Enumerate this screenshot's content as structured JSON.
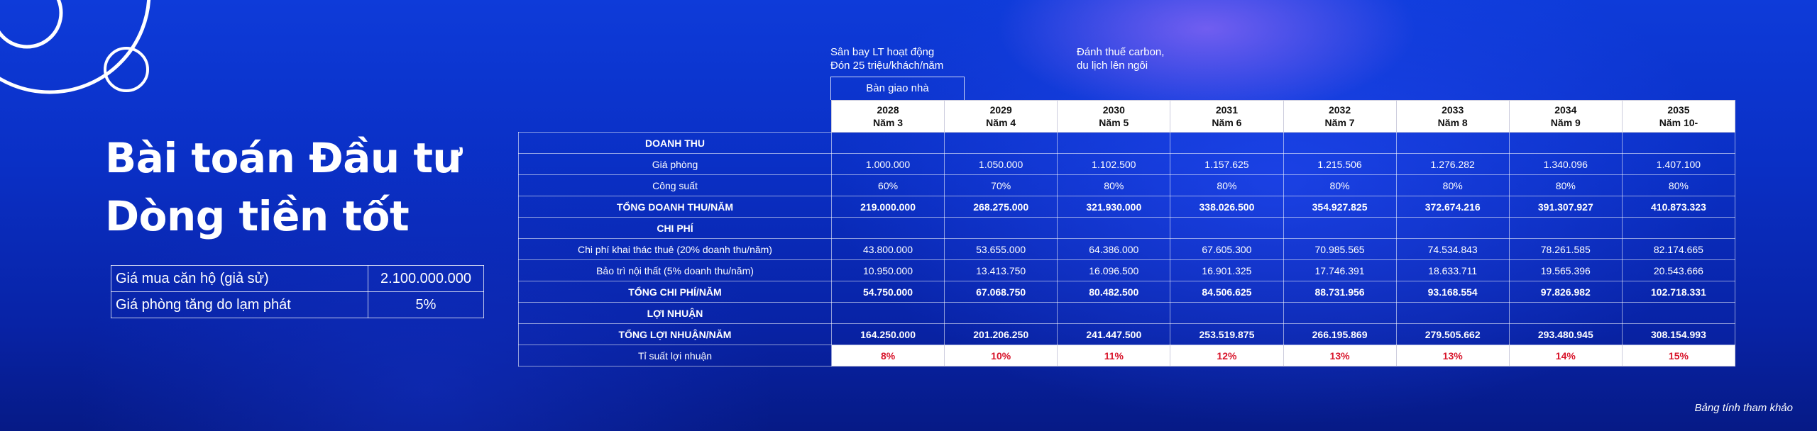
{
  "title_lines": [
    "Bài toán Đầu tư",
    "Dòng tiền tốt"
  ],
  "assumptions": [
    {
      "label": "Giá mua căn hộ (giả sử)",
      "value": "2.100.000.000"
    },
    {
      "label": "Giá phòng tăng do lạm phát",
      "value": "5%"
    }
  ],
  "notes": {
    "airport_l1": "Sân bay LT hoạt động",
    "airport_l2": "Đón 25 triệu/khách/năm",
    "carbon_l1": "Đánh thuế carbon,",
    "carbon_l2": "du lịch lên ngôi",
    "handover": "Bàn giao nhà"
  },
  "years": [
    {
      "year": "2028",
      "label": "Năm 3"
    },
    {
      "year": "2029",
      "label": "Năm 4"
    },
    {
      "year": "2030",
      "label": "Năm 5"
    },
    {
      "year": "2031",
      "label": "Năm 6"
    },
    {
      "year": "2032",
      "label": "Năm 7"
    },
    {
      "year": "2033",
      "label": "Năm 8"
    },
    {
      "year": "2034",
      "label": "Năm 9"
    },
    {
      "year": "2035",
      "label": "Năm 10-"
    }
  ],
  "rows": [
    {
      "label": "DOANH THU",
      "kind": "section",
      "values": [
        "",
        "",
        "",
        "",
        "",
        "",
        "",
        ""
      ]
    },
    {
      "label": "Giá phòng",
      "kind": "normal",
      "values": [
        "1.000.000",
        "1.050.000",
        "1.102.500",
        "1.157.625",
        "1.215.506",
        "1.276.282",
        "1.340.096",
        "1.407.100"
      ]
    },
    {
      "label": "Công suất",
      "kind": "normal",
      "values": [
        "60%",
        "70%",
        "80%",
        "80%",
        "80%",
        "80%",
        "80%",
        "80%"
      ]
    },
    {
      "label": "TỔNG DOANH THU/NĂM",
      "kind": "bold",
      "values": [
        "219.000.000",
        "268.275.000",
        "321.930.000",
        "338.026.500",
        "354.927.825",
        "372.674.216",
        "391.307.927",
        "410.873.323"
      ]
    },
    {
      "label": "CHI PHÍ",
      "kind": "section",
      "values": [
        "",
        "",
        "",
        "",
        "",
        "",
        "",
        ""
      ]
    },
    {
      "label": "Chi phí khai thác thuê (20% doanh thu/năm)",
      "kind": "normal",
      "values": [
        "43.800.000",
        "53.655.000",
        "64.386.000",
        "67.605.300",
        "70.985.565",
        "74.534.843",
        "78.261.585",
        "82.174.665"
      ]
    },
    {
      "label": "Bảo trì nội thất (5% doanh thu/năm)",
      "kind": "normal",
      "values": [
        "10.950.000",
        "13.413.750",
        "16.096.500",
        "16.901.325",
        "17.746.391",
        "18.633.711",
        "19.565.396",
        "20.543.666"
      ]
    },
    {
      "label": "TỔNG CHI PHÍ/NĂM",
      "kind": "bold",
      "values": [
        "54.750.000",
        "67.068.750",
        "80.482.500",
        "84.506.625",
        "88.731.956",
        "93.168.554",
        "97.826.982",
        "102.718.331"
      ]
    },
    {
      "label": "LỢI NHUẬN",
      "kind": "section",
      "values": [
        "",
        "",
        "",
        "",
        "",
        "",
        "",
        ""
      ]
    },
    {
      "label": "TỔNG LỢI NHUẬN/NĂM",
      "kind": "bold",
      "values": [
        "164.250.000",
        "201.206.250",
        "241.447.500",
        "253.519.875",
        "266.195.869",
        "279.505.662",
        "293.480.945",
        "308.154.993"
      ]
    },
    {
      "label": "Tỉ suất lợi nhuận",
      "kind": "rate",
      "values": [
        "8%",
        "10%",
        "11%",
        "12%",
        "13%",
        "13%",
        "14%",
        "15%"
      ]
    }
  ],
  "footnote": "Bảng tính tham khảo"
}
